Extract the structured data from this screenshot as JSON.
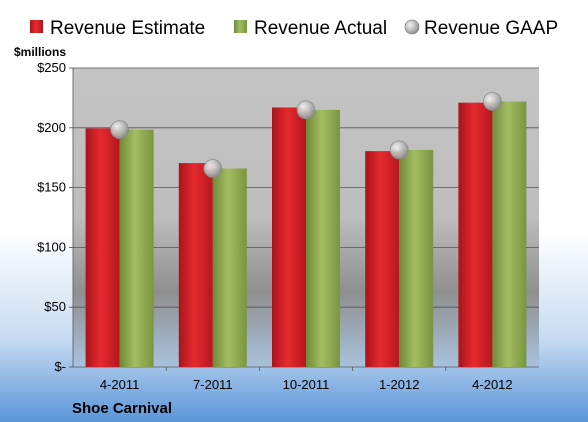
{
  "chart_data": {
    "type": "bar",
    "title": "",
    "unit_label": "$millions",
    "company": "Shoe Carnival",
    "categories": [
      "4-2011",
      "7-2011",
      "10-2011",
      "1-2012",
      "4-2012"
    ],
    "series": [
      {
        "name": "Revenue Estimate",
        "type": "bar",
        "values": [
          199.5,
          170.5,
          217,
          180.5,
          221
        ]
      },
      {
        "name": "Revenue Actual",
        "type": "bar",
        "values": [
          198.5,
          166,
          215,
          181.5,
          222
        ]
      },
      {
        "name": "Revenue GAAP",
        "type": "scatter",
        "values": [
          198.5,
          166,
          215,
          181.5,
          222
        ]
      }
    ],
    "ylim": [
      0,
      250
    ],
    "yticks": [
      0,
      50,
      100,
      150,
      200,
      250
    ],
    "ytick_labels": [
      "$-",
      "$50",
      "$100",
      "$150",
      "$200",
      "$250"
    ],
    "grid": true,
    "legend_position": "top"
  },
  "colors": {
    "estimate": "#d42027",
    "actual": "#8faa4e",
    "gaap": "#bfbfbf"
  }
}
